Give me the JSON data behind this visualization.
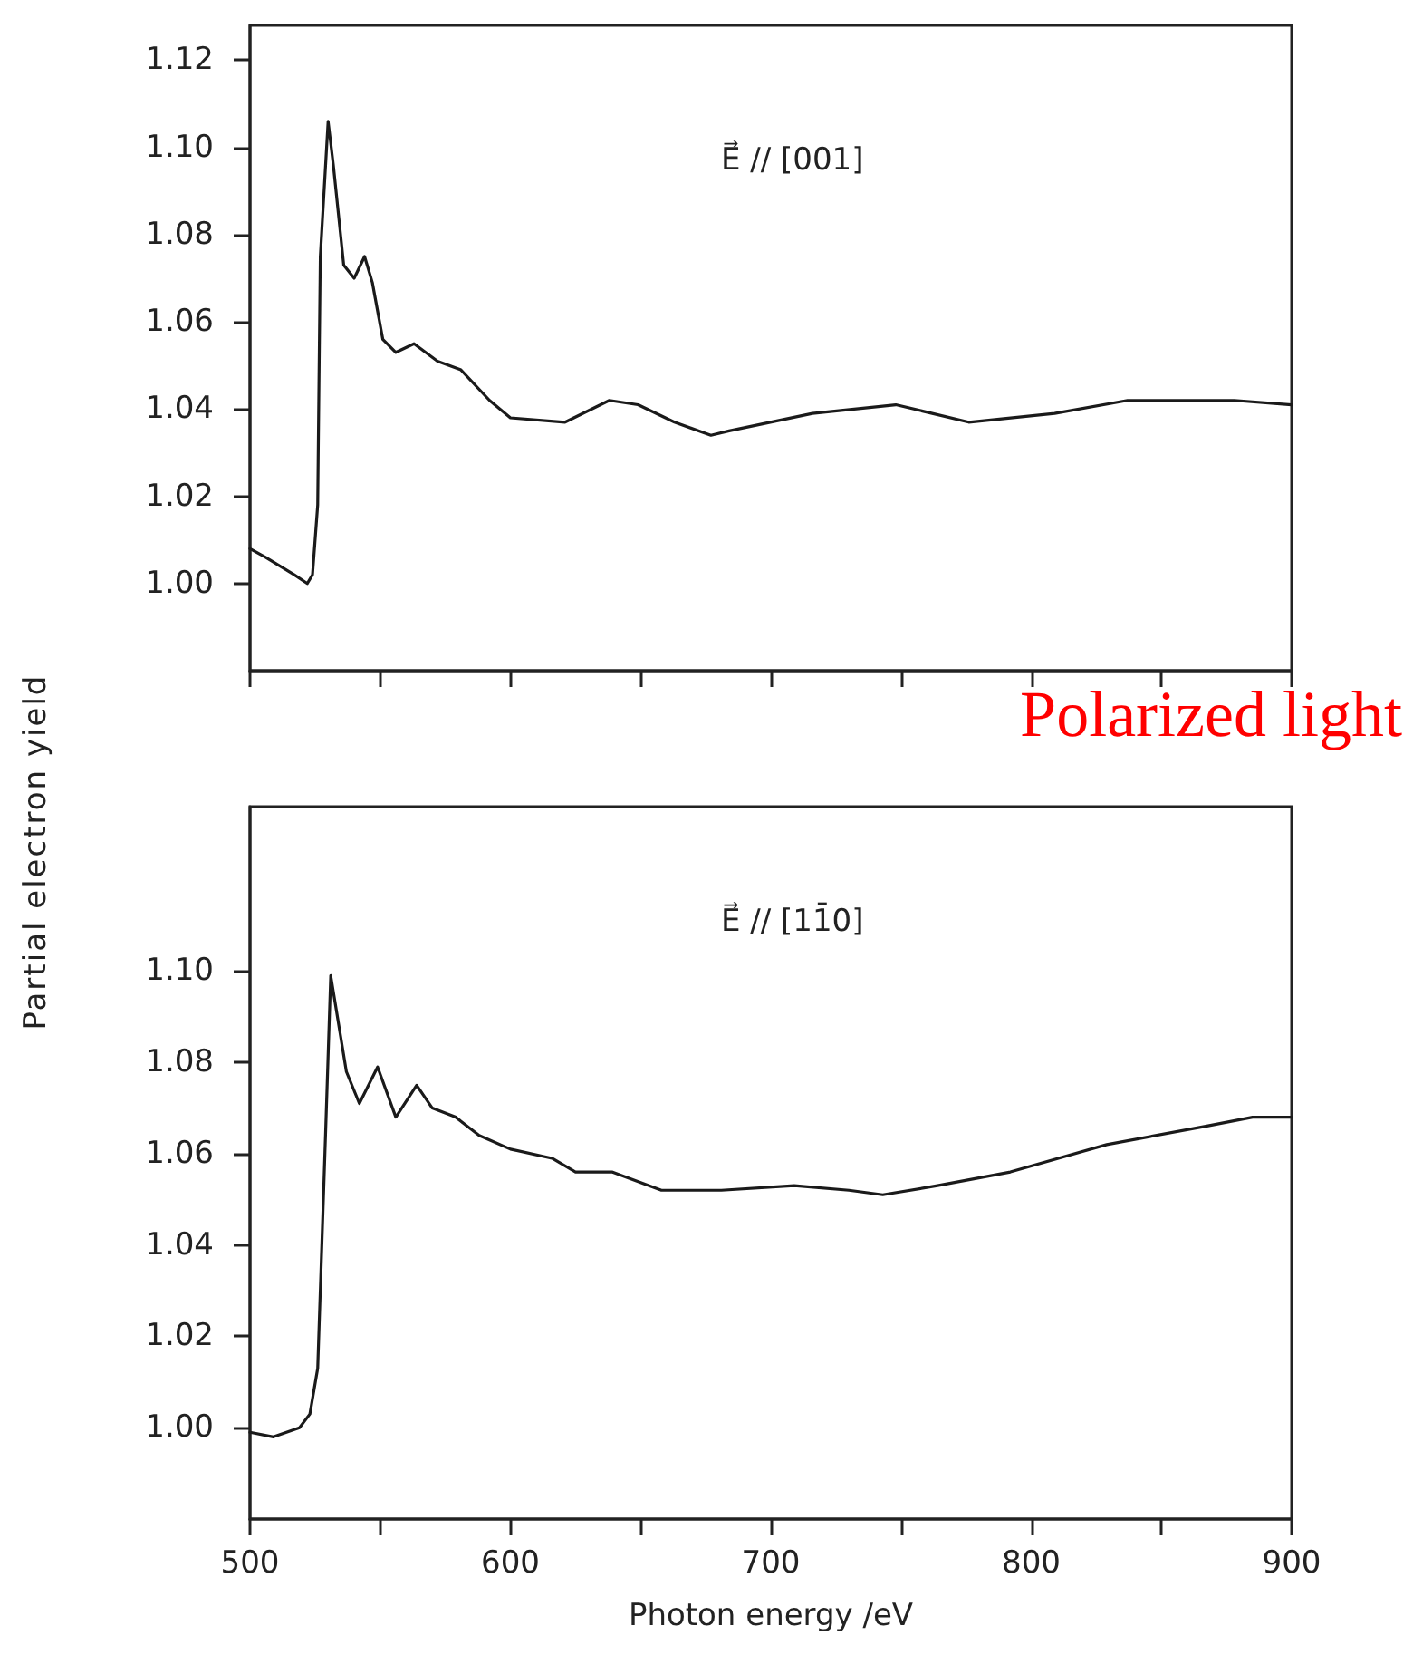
{
  "chart_data": [
    {
      "type": "line",
      "annotations": [
        "E⃗ // [001]",
        "Polarized light"
      ],
      "line_style": "solid",
      "marker": "none",
      "tick_labels": "y",
      "xlim": [
        500,
        900
      ],
      "xticks": [
        500,
        {
          "value": 550,
          "label": null
        },
        600,
        {
          "value": 650,
          "label": null
        },
        700,
        {
          "value": 750,
          "label": null
        },
        800,
        {
          "value": 850,
          "label": null
        },
        900
      ],
      "ylim": [
        0.98,
        1.128
      ],
      "yticks": [
        {
          "value": 1.0,
          "label": "1.00"
        },
        {
          "value": 1.02,
          "label": "1.02"
        },
        {
          "value": 1.04,
          "label": "1.04"
        },
        {
          "value": 1.06,
          "label": "1.06"
        },
        {
          "value": 1.08,
          "label": "1.08"
        },
        {
          "value": 1.1,
          "label": "1.10"
        },
        {
          "value": 1.12,
          "label": "1.12"
        }
      ],
      "series": [
        {
          "color": "#1a1a1a",
          "x": [
            500,
            506,
            517,
            522,
            524,
            526,
            527,
            530,
            532,
            536,
            540,
            544,
            547,
            551,
            556,
            563,
            572,
            581,
            592,
            600,
            621,
            638,
            649,
            663,
            677,
            684,
            716,
            748,
            762,
            776,
            809,
            837,
            860,
            878,
            900
          ],
          "values": [
            1.008,
            1.006,
            1.002,
            1.0,
            1.002,
            1.018,
            1.075,
            1.106,
            1.096,
            1.073,
            1.07,
            1.075,
            1.069,
            1.056,
            1.053,
            1.055,
            1.051,
            1.049,
            1.042,
            1.038,
            1.037,
            1.042,
            1.041,
            1.037,
            1.034,
            1.035,
            1.039,
            1.041,
            1.039,
            1.037,
            1.039,
            1.042,
            1.042,
            1.042,
            1.041
          ]
        }
      ]
    },
    {
      "type": "line",
      "xlabel": "Photon energy /eV",
      "ylabel": "Partial electron yield",
      "annotations": [
        "E⃗ // [11̄0]"
      ],
      "line_style": "solid",
      "marker": "none",
      "xlim": [
        500,
        900
      ],
      "xticks": [
        500,
        {
          "value": 550,
          "label": null
        },
        600,
        {
          "value": 650,
          "label": null
        },
        700,
        {
          "value": 750,
          "label": null
        },
        800,
        {
          "value": 850,
          "label": null
        },
        900
      ],
      "ylim": [
        0.98,
        1.136
      ],
      "yticks": [
        {
          "value": 1.0,
          "label": "1.00"
        },
        {
          "value": 1.02,
          "label": "1.02"
        },
        {
          "value": 1.04,
          "label": "1.04"
        },
        {
          "value": 1.06,
          "label": "1.06"
        },
        {
          "value": 1.08,
          "label": "1.08"
        },
        {
          "value": 1.1,
          "label": "1.10"
        }
      ],
      "series": [
        {
          "color": "#1a1a1a",
          "x": [
            500,
            509,
            519,
            523,
            526,
            529,
            531,
            533,
            537,
            542,
            549,
            556,
            564,
            570,
            579,
            588,
            600,
            616,
            625,
            639,
            658,
            681,
            709,
            730,
            743,
            764,
            792,
            829,
            867,
            885,
            900
          ],
          "values": [
            0.999,
            0.998,
            1.0,
            1.003,
            1.013,
            1.064,
            1.099,
            1.092,
            1.078,
            1.071,
            1.079,
            1.068,
            1.075,
            1.07,
            1.068,
            1.064,
            1.061,
            1.059,
            1.056,
            1.056,
            1.052,
            1.052,
            1.053,
            1.052,
            1.051,
            1.053,
            1.056,
            1.062,
            1.066,
            1.068,
            1.068
          ]
        }
      ]
    }
  ]
}
